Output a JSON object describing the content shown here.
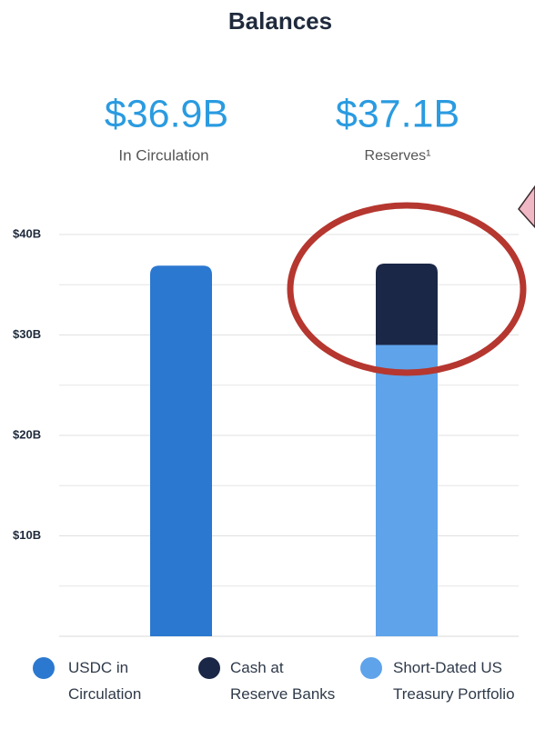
{
  "chart_data": {
    "type": "stacked-bar",
    "title": "Balances",
    "headlines": [
      {
        "text": "$36.9B",
        "caption": "In Circulation"
      },
      {
        "text": "$37.1B",
        "caption": "Reserves¹"
      }
    ],
    "categories": [
      null,
      null
    ],
    "series": [
      {
        "name": "USDC in Circulation",
        "color": "#2b78d0",
        "values": [
          36.9,
          null
        ]
      },
      {
        "name": "Cash at Reserve Banks",
        "color": "#1b2746",
        "values": [
          null,
          8.1
        ]
      },
      {
        "name": "Short-Dated US Treasury Portfolio",
        "color": "#5fa3ea",
        "values": [
          null,
          29
        ]
      }
    ],
    "ylim": [
      0,
      40
    ],
    "yticks": [
      {
        "value": 10,
        "label": "$10B"
      },
      {
        "value": 20,
        "label": "$20B"
      },
      {
        "value": 30,
        "label": "$30B"
      },
      {
        "value": 40,
        "label": "$40B"
      }
    ],
    "minor_yticks": [
      5,
      15,
      25,
      35
    ],
    "grid": true
  }
}
